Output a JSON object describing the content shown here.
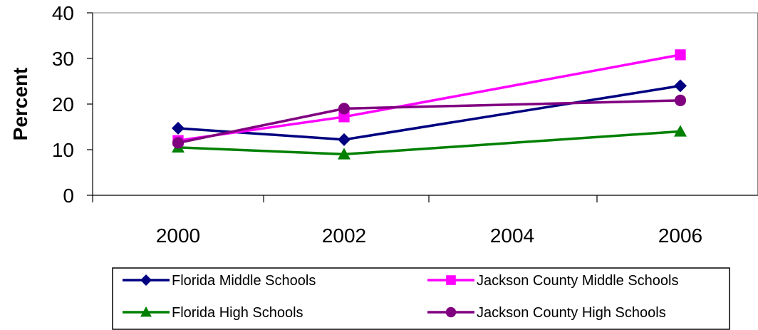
{
  "chart_data": {
    "type": "line",
    "x": [
      "2000",
      "2002",
      "2004",
      "2006"
    ],
    "ylabel": "Percent",
    "ylim": [
      0,
      40
    ],
    "yticks": [
      "0",
      "10",
      "20",
      "30",
      "40"
    ],
    "grid": false,
    "legend_position": "bottom",
    "series": [
      {
        "name": "Florida Middle Schools",
        "color": "#000080",
        "marker": "diamond",
        "values": [
          14.7,
          12.2,
          null,
          24.0
        ]
      },
      {
        "name": "Jackson County Middle Schools",
        "color": "#FF00FF",
        "marker": "square",
        "values": [
          12.0,
          17.2,
          null,
          30.8
        ]
      },
      {
        "name": "Florida High Schools",
        "color": "#008000",
        "marker": "triangle",
        "values": [
          10.5,
          9.0,
          null,
          14.0
        ]
      },
      {
        "name": "Jackson County High Schools",
        "color": "#800080",
        "marker": "circle",
        "values": [
          11.5,
          19.0,
          null,
          20.8
        ]
      }
    ]
  }
}
